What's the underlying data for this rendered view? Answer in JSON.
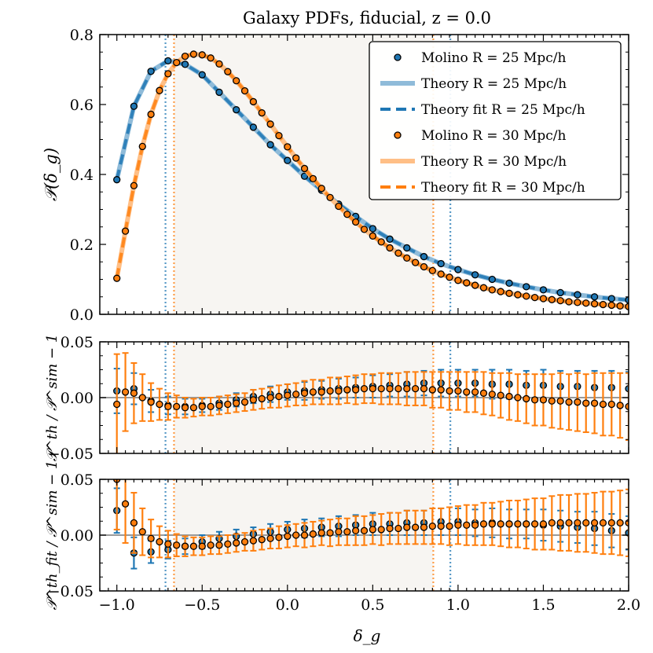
{
  "chart_data": {
    "type": "line",
    "title": "Galaxy PDFs, fiducial, z = 0.0",
    "xlabel": "δ_g",
    "xlim": [
      -1.1,
      2.0
    ],
    "xticks": [
      -1.0,
      -0.5,
      0.0,
      0.5,
      1.0,
      1.5,
      2.0
    ],
    "xtick_labels": [
      "−1.0",
      "−0.5",
      "0.0",
      "0.5",
      "1.0",
      "1.5",
      "2.0"
    ],
    "vlines": [
      {
        "x": -0.715,
        "color": "#1f77b4"
      },
      {
        "x": 0.955,
        "color": "#1f77b4"
      },
      {
        "x": -0.665,
        "color": "#ff7f0e"
      },
      {
        "x": 0.855,
        "color": "#ff7f0e"
      }
    ],
    "shaded_x_range": [
      -0.665,
      0.855
    ],
    "colors": {
      "blue": "#1f77b4",
      "orange": "#ff7f0e",
      "blue_light": "#8fbbd9",
      "orange_light": "#ffbf86"
    },
    "panels": [
      {
        "name": "pdf",
        "ylabel": "𝒫(δ_g)",
        "ylim": [
          0.0,
          0.8
        ],
        "yticks": [
          0.0,
          0.2,
          0.4,
          0.6,
          0.8
        ],
        "ytick_labels": [
          "0.0",
          "0.2",
          "0.4",
          "0.6",
          "0.8"
        ],
        "legend": {
          "position": "upper right",
          "entries": [
            {
              "label": "Molino R = 25 Mpc/h",
              "style": "marker",
              "color": "#1f77b4"
            },
            {
              "label": "Theory R = 25 Mpc/h",
              "style": "solid",
              "color": "#8fbbd9"
            },
            {
              "label": "Theory fit R = 25 Mpc/h",
              "style": "dashed",
              "color": "#1f77b4"
            },
            {
              "label": "Molino R = 30 Mpc/h",
              "style": "marker",
              "color": "#ff7f0e"
            },
            {
              "label": "Theory R = 30 Mpc/h",
              "style": "solid",
              "color": "#ffbf86"
            },
            {
              "label": "Theory fit R = 30 Mpc/h",
              "style": "dashed",
              "color": "#ff7f0e"
            }
          ]
        }
      },
      {
        "name": "ratio-theory",
        "ylabel": "𝒫^th / 𝒫^sim − 1",
        "ylim": [
          -0.05,
          0.05
        ],
        "yticks": [
          -0.05,
          0.0,
          0.05
        ],
        "ytick_labels": [
          "−0.05",
          "0.00",
          "0.05"
        ]
      },
      {
        "name": "ratio-fit",
        "ylabel": "𝒫^th_fit / 𝒫^sim − 1",
        "ylim": [
          -0.05,
          0.05
        ],
        "yticks": [
          -0.05,
          0.0,
          0.05
        ],
        "ytick_labels": [
          "−0.05",
          "0.00",
          "0.05"
        ]
      }
    ],
    "series": [
      {
        "name": "R25",
        "color": "#1f77b4",
        "x": [
          -1.0,
          -0.9,
          -0.8,
          -0.7,
          -0.6,
          -0.5,
          -0.4,
          -0.3,
          -0.2,
          -0.1,
          0.0,
          0.1,
          0.2,
          0.3,
          0.4,
          0.5,
          0.6,
          0.7,
          0.8,
          0.9,
          1.0,
          1.1,
          1.2,
          1.3,
          1.4,
          1.5,
          1.6,
          1.7,
          1.8,
          1.9,
          2.0
        ],
        "pdf": [
          0.385,
          0.595,
          0.695,
          0.725,
          0.715,
          0.685,
          0.635,
          0.585,
          0.535,
          0.485,
          0.44,
          0.395,
          0.355,
          0.315,
          0.28,
          0.245,
          0.215,
          0.19,
          0.165,
          0.145,
          0.128,
          0.113,
          0.1,
          0.089,
          0.079,
          0.07,
          0.062,
          0.056,
          0.05,
          0.045,
          0.041
        ],
        "ratio": [
          0.006,
          0.008,
          -0.003,
          -0.007,
          -0.008,
          -0.007,
          -0.005,
          -0.002,
          0.001,
          0.003,
          0.005,
          0.006,
          0.007,
          0.008,
          0.009,
          0.01,
          0.011,
          0.012,
          0.013,
          0.013,
          0.013,
          0.013,
          0.012,
          0.012,
          0.011,
          0.011,
          0.01,
          0.01,
          0.009,
          0.009,
          0.008
        ],
        "ratio_err": [
          0.02,
          0.014,
          0.01,
          0.008,
          0.007,
          0.006,
          0.006,
          0.006,
          0.006,
          0.007,
          0.007,
          0.008,
          0.008,
          0.009,
          0.009,
          0.01,
          0.01,
          0.011,
          0.011,
          0.012,
          0.012,
          0.012,
          0.013,
          0.013,
          0.013,
          0.014,
          0.014,
          0.014,
          0.015,
          0.015,
          0.015
        ],
        "ratio_fit": [
          0.022,
          -0.016,
          -0.015,
          -0.013,
          -0.01,
          -0.006,
          -0.003,
          -0.001,
          0.001,
          0.003,
          0.005,
          0.006,
          0.007,
          0.008,
          0.009,
          0.01,
          0.01,
          0.011,
          0.011,
          0.012,
          0.012,
          0.011,
          0.011,
          0.01,
          0.01,
          0.009,
          0.008,
          0.007,
          0.006,
          0.004,
          0.002
        ],
        "ratio_fit_err": [
          0.02,
          0.014,
          0.01,
          0.008,
          0.007,
          0.006,
          0.006,
          0.006,
          0.006,
          0.007,
          0.007,
          0.008,
          0.008,
          0.009,
          0.009,
          0.01,
          0.01,
          0.011,
          0.011,
          0.012,
          0.012,
          0.012,
          0.013,
          0.013,
          0.013,
          0.014,
          0.014,
          0.014,
          0.015,
          0.015,
          0.015
        ]
      },
      {
        "name": "R30",
        "color": "#ff7f0e",
        "x": [
          -1.0,
          -0.95,
          -0.9,
          -0.85,
          -0.8,
          -0.75,
          -0.7,
          -0.65,
          -0.6,
          -0.55,
          -0.5,
          -0.45,
          -0.4,
          -0.35,
          -0.3,
          -0.25,
          -0.2,
          -0.15,
          -0.1,
          -0.05,
          0.0,
          0.05,
          0.1,
          0.15,
          0.2,
          0.25,
          0.3,
          0.35,
          0.4,
          0.45,
          0.5,
          0.55,
          0.6,
          0.65,
          0.7,
          0.75,
          0.8,
          0.85,
          0.9,
          0.95,
          1.0,
          1.05,
          1.1,
          1.15,
          1.2,
          1.25,
          1.3,
          1.35,
          1.4,
          1.45,
          1.5,
          1.55,
          1.6,
          1.65,
          1.7,
          1.75,
          1.8,
          1.85,
          1.9,
          1.95,
          2.0
        ],
        "pdf": [
          0.103,
          0.238,
          0.368,
          0.48,
          0.572,
          0.64,
          0.688,
          0.72,
          0.738,
          0.744,
          0.742,
          0.733,
          0.716,
          0.694,
          0.668,
          0.639,
          0.608,
          0.576,
          0.544,
          0.511,
          0.479,
          0.447,
          0.417,
          0.388,
          0.36,
          0.334,
          0.309,
          0.286,
          0.264,
          0.243,
          0.224,
          0.207,
          0.19,
          0.175,
          0.161,
          0.148,
          0.136,
          0.125,
          0.115,
          0.106,
          0.097,
          0.09,
          0.083,
          0.076,
          0.07,
          0.065,
          0.06,
          0.056,
          0.052,
          0.048,
          0.045,
          0.042,
          0.039,
          0.036,
          0.034,
          0.032,
          0.03,
          0.028,
          0.026,
          0.024,
          0.022
        ],
        "ratio": [
          -0.006,
          0.005,
          0.004,
          0.0,
          -0.004,
          -0.006,
          -0.008,
          -0.008,
          -0.009,
          -0.009,
          -0.008,
          -0.008,
          -0.007,
          -0.006,
          -0.005,
          -0.004,
          -0.002,
          -0.001,
          0.0,
          0.001,
          0.002,
          0.003,
          0.004,
          0.005,
          0.005,
          0.006,
          0.006,
          0.007,
          0.007,
          0.008,
          0.008,
          0.008,
          0.008,
          0.008,
          0.008,
          0.008,
          0.008,
          0.007,
          0.007,
          0.006,
          0.006,
          0.005,
          0.005,
          0.004,
          0.003,
          0.002,
          0.001,
          0.0,
          -0.001,
          -0.002,
          -0.002,
          -0.003,
          -0.003,
          -0.004,
          -0.004,
          -0.005,
          -0.005,
          -0.006,
          -0.006,
          -0.007,
          -0.008
        ],
        "ratio_err": [
          0.045,
          0.035,
          0.027,
          0.021,
          0.017,
          0.014,
          0.012,
          0.01,
          0.009,
          0.008,
          0.008,
          0.008,
          0.008,
          0.008,
          0.008,
          0.008,
          0.009,
          0.009,
          0.009,
          0.01,
          0.01,
          0.01,
          0.011,
          0.011,
          0.011,
          0.012,
          0.012,
          0.012,
          0.013,
          0.013,
          0.013,
          0.014,
          0.014,
          0.014,
          0.015,
          0.015,
          0.015,
          0.016,
          0.016,
          0.017,
          0.017,
          0.018,
          0.018,
          0.019,
          0.019,
          0.02,
          0.021,
          0.021,
          0.022,
          0.023,
          0.023,
          0.024,
          0.025,
          0.025,
          0.026,
          0.026,
          0.027,
          0.028,
          0.028,
          0.029,
          0.03
        ],
        "ratio_fit": [
          0.05,
          0.028,
          0.011,
          0.003,
          -0.003,
          -0.006,
          -0.008,
          -0.009,
          -0.01,
          -0.01,
          -0.01,
          -0.009,
          -0.009,
          -0.008,
          -0.007,
          -0.006,
          -0.005,
          -0.004,
          -0.003,
          -0.002,
          -0.001,
          0.0,
          0.0,
          0.001,
          0.002,
          0.002,
          0.003,
          0.003,
          0.004,
          0.004,
          0.005,
          0.005,
          0.006,
          0.006,
          0.007,
          0.007,
          0.007,
          0.008,
          0.008,
          0.008,
          0.009,
          0.009,
          0.009,
          0.01,
          0.01,
          0.01,
          0.01,
          0.01,
          0.01,
          0.01,
          0.01,
          0.011,
          0.011,
          0.011,
          0.011,
          0.011,
          0.011,
          0.011,
          0.011,
          0.011,
          0.011
        ],
        "ratio_fit_err": [
          0.045,
          0.035,
          0.027,
          0.021,
          0.017,
          0.014,
          0.012,
          0.01,
          0.009,
          0.008,
          0.008,
          0.008,
          0.008,
          0.008,
          0.008,
          0.008,
          0.009,
          0.009,
          0.009,
          0.01,
          0.01,
          0.01,
          0.011,
          0.011,
          0.011,
          0.012,
          0.012,
          0.012,
          0.013,
          0.013,
          0.013,
          0.014,
          0.014,
          0.014,
          0.015,
          0.015,
          0.015,
          0.016,
          0.016,
          0.017,
          0.017,
          0.018,
          0.018,
          0.019,
          0.019,
          0.02,
          0.021,
          0.021,
          0.022,
          0.023,
          0.023,
          0.024,
          0.025,
          0.025,
          0.026,
          0.026,
          0.027,
          0.028,
          0.028,
          0.029,
          0.03
        ]
      }
    ]
  }
}
